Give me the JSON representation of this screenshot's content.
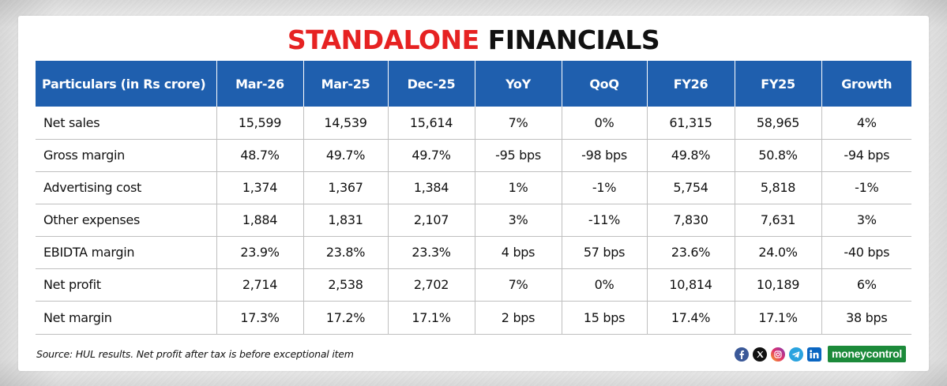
{
  "title": {
    "part1": "STANDALONE",
    "part2": "FINANCIALS",
    "accent": "#e62222"
  },
  "table": {
    "header_color": "#1f5fae",
    "columns": [
      "Particulars (in Rs crore)",
      "Mar-26",
      "Mar-25",
      "Dec-25",
      "YoY",
      "QoQ",
      "FY26",
      "FY25",
      "Growth"
    ],
    "rows": [
      [
        "Net sales",
        "15,599",
        "14,539",
        "15,614",
        "7%",
        "0%",
        "61,315",
        "58,965",
        "4%"
      ],
      [
        "Gross margin",
        "48.7%",
        "49.7%",
        "49.7%",
        "-95 bps",
        "-98 bps",
        "49.8%",
        "50.8%",
        "-94 bps"
      ],
      [
        "Advertising cost",
        "1,374",
        "1,367",
        "1,384",
        "1%",
        "-1%",
        "5,754",
        "5,818",
        "-1%"
      ],
      [
        "Other expenses",
        "1,884",
        "1,831",
        "2,107",
        "3%",
        "-11%",
        "7,830",
        "7,631",
        "3%"
      ],
      [
        "EBIDTA margin",
        "23.9%",
        "23.8%",
        "23.3%",
        "4 bps",
        "57 bps",
        "23.6%",
        "24.0%",
        "-40 bps"
      ],
      [
        "Net profit",
        "2,714",
        "2,538",
        "2,702",
        "7%",
        "0%",
        "10,814",
        "10,189",
        "6%"
      ],
      [
        "Net margin",
        "17.3%",
        "17.2%",
        "17.1%",
        "2 bps",
        "15 bps",
        "17.4%",
        "17.1%",
        "38 bps"
      ]
    ]
  },
  "footer": {
    "source": "Source: HUL results. Net profit after tax is before exceptional item",
    "brand": "moneycontrol",
    "brand_color": "#1c8a3a",
    "social_icons": [
      "facebook-icon",
      "x-icon",
      "instagram-icon",
      "telegram-icon",
      "linkedin-icon"
    ]
  }
}
